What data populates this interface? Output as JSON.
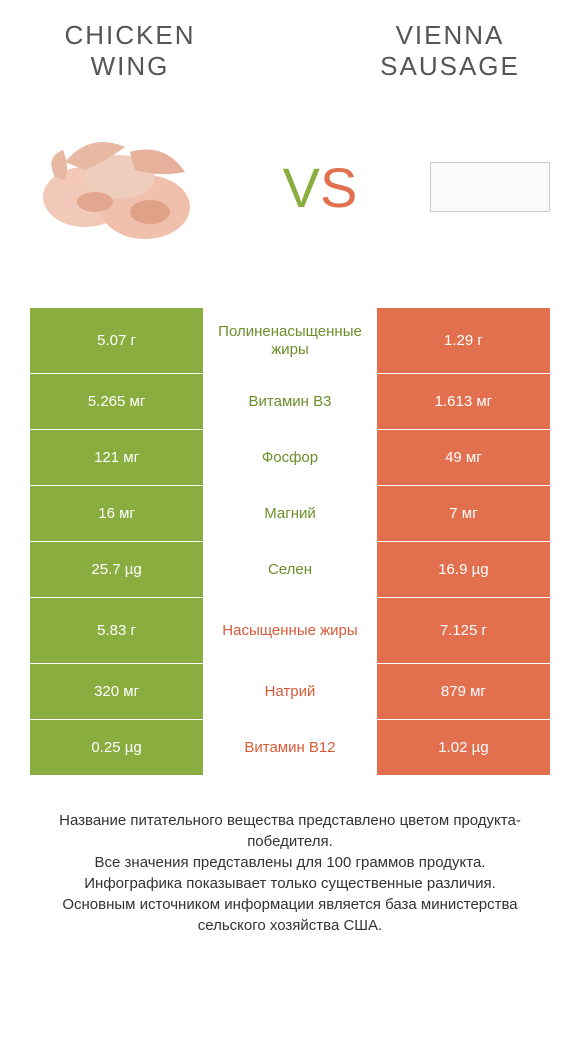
{
  "titles": {
    "left": "CHICKEN WING",
    "right": "VIENNA SAUSAGE"
  },
  "vs": {
    "v": "V",
    "s": "S"
  },
  "colors": {
    "green": "#8aad3f",
    "orange": "#e2704f",
    "greenText": "#6b8f2a",
    "orangeText": "#d85a38",
    "titleText": "#555555",
    "footText": "#333333"
  },
  "rows": [
    {
      "left": "5.07 г",
      "label": "Полиненасыщенные жиры",
      "right": "1.29 г",
      "winner": "green",
      "tall": true
    },
    {
      "left": "5.265 мг",
      "label": "Витамин B3",
      "right": "1.613 мг",
      "winner": "green",
      "tall": false
    },
    {
      "left": "121 мг",
      "label": "Фосфор",
      "right": "49 мг",
      "winner": "green",
      "tall": false
    },
    {
      "left": "16 мг",
      "label": "Магний",
      "right": "7 мг",
      "winner": "green",
      "tall": false
    },
    {
      "left": "25.7 µg",
      "label": "Селен",
      "right": "16.9 µg",
      "winner": "green",
      "tall": false
    },
    {
      "left": "5.83 г",
      "label": "Насыщенные жиры",
      "right": "7.125 г",
      "winner": "orange",
      "tall": true
    },
    {
      "left": "320 мг",
      "label": "Натрий",
      "right": "879 мг",
      "winner": "orange",
      "tall": false
    },
    {
      "left": "0.25 µg",
      "label": "Витамин B12",
      "right": "1.02 µg",
      "winner": "orange",
      "tall": false
    }
  ],
  "footnote": {
    "l1": "Название питательного вещества представлено цветом продукта-победителя.",
    "l2": "Все значения представлены для 100 граммов продукта.",
    "l3": "Инфографика показывает только существенные различия.",
    "l4": "Основным источником информации является база министерства сельского хозяйства США."
  }
}
